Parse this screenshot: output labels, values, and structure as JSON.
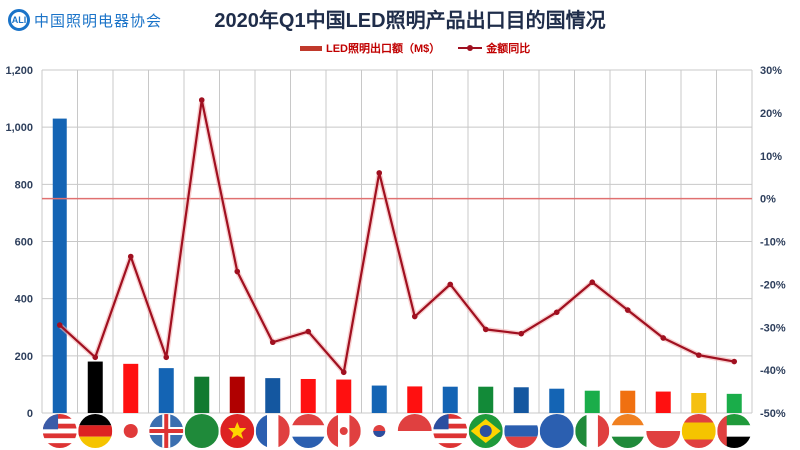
{
  "header": {
    "logo_mark": "ALI",
    "logo_text": "中国照明电器协会",
    "title": "2020年Q1中国LED照明产品出口目的国情况"
  },
  "legend": {
    "bar_label": "LED照明出口额（M$）",
    "line_label": "金额同比"
  },
  "colors": {
    "line": "#a01020",
    "zero_line": "#e07070",
    "grid": "#c8c8c8",
    "axis_text": "#2e3f5c"
  },
  "chart_data": {
    "type": "bar",
    "title": "2020年Q1中国LED照明产品出口目的国情况",
    "xlabel": "",
    "ylabel": "LED照明出口额（M$）",
    "y2label": "金额同比",
    "ylim": [
      0,
      1200
    ],
    "y2lim": [
      -50,
      30
    ],
    "yticks": [
      "0",
      "200",
      "400",
      "600",
      "800",
      "1,000",
      "1,200"
    ],
    "y2ticks": [
      "-50%",
      "-40%",
      "-30%",
      "-20%",
      "-10%",
      "0%",
      "10%",
      "20%",
      "30%"
    ],
    "grid": true,
    "legend_position": "top",
    "categories": [
      "United States",
      "Germany",
      "Japan",
      "United Kingdom",
      "Saudi Arabia",
      "Vietnam",
      "France",
      "Netherlands",
      "Canada",
      "South Korea",
      "Singapore",
      "Malaysia",
      "Brazil",
      "Russia",
      "Australia",
      "Mexico",
      "India",
      "Poland",
      "Spain",
      "UAE"
    ],
    "bar_colors": [
      "#1464b4",
      "#000000",
      "#ff1010",
      "#1464b4",
      "#127a30",
      "#b00000",
      "#1457a0",
      "#ff1010",
      "#ff1010",
      "#1464b4",
      "#ff1010",
      "#1464b4",
      "#128a38",
      "#1457a0",
      "#1464b4",
      "#1aad4a",
      "#f07010",
      "#ff1010",
      "#f5c010",
      "#1aad4a"
    ],
    "series": [
      {
        "name": "LED照明出口额（M$）",
        "type": "bar",
        "axis": "left",
        "values": [
          1030,
          180,
          172,
          157,
          127,
          127,
          122,
          119,
          117,
          96,
          93,
          92,
          92,
          90,
          85,
          78,
          78,
          75,
          70,
          67
        ]
      },
      {
        "name": "金额同比",
        "type": "line",
        "axis": "right",
        "unit": "%",
        "values": [
          -29.5,
          -37,
          -13.5,
          -37,
          23,
          -17,
          -33.5,
          -31,
          -40.5,
          6,
          -27.5,
          -20,
          -30.5,
          -31.5,
          -26.5,
          -19.5,
          -26,
          -32.5,
          -36.5,
          -38
        ]
      }
    ]
  }
}
